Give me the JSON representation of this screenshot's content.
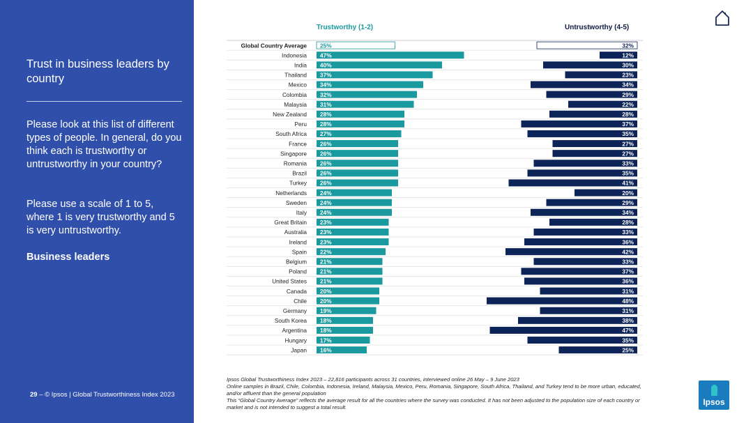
{
  "sidebar": {
    "title": "Trust in business leaders by country",
    "question": "Please look at this list of different types of people. In general, do you think each is trustworthy or untrustworthy in your country?",
    "instruction": "Please use a scale of 1 to 5, where 1 is very trustworthy and 5 is very untrustworthy.",
    "subject": "Business leaders",
    "footer_page": "29",
    "footer_text": " – © Ipsos | Global Trustworthiness Index 2023"
  },
  "header": {
    "left_label": "Trustworthy (1-2)",
    "right_label": "Untrustworthy (4-5)"
  },
  "notes": {
    "line1": "Ipsos Global Trustworthiness Index 2023 – 22,816 participants across 31 countries, interviewed online 26 May – 9 June 2023",
    "line2": "Online samples in Brazil, Chile, Colombia, Indonesia, Ireland, Malaysia, Mexico, Peru, Romania, Singapore, South Africa, Thailand, and Turkey tend to be more urban, educated, and/or affluent than the general population",
    "line3": "This “Global Country Average” reflects the average result for all the countries where the survey was conducted. It has not been adjusted to the population size of each country or market and is not intended to suggest a total result."
  },
  "logo": {
    "text": "Ipsos",
    "color": "#1b7bbf"
  },
  "icons": {
    "home": "home-icon"
  },
  "colors": {
    "trustworthy": "#1a9a9e",
    "untrustworthy": "#0d2458",
    "sidebar": "#2f4fab"
  },
  "chart_data": {
    "type": "bar",
    "categories": [
      "Global Country Average",
      "Indonesia",
      "India",
      "Thailand",
      "Mexico",
      "Colombia",
      "Malaysia",
      "New Zealand",
      "Peru",
      "South Africa",
      "France",
      "Singapore",
      "Romania",
      "Brazil",
      "Turkey",
      "Netherlands",
      "Sweden",
      "Italy",
      "Great Britain",
      "Australia",
      "Ireland",
      "Spain",
      "Belgium",
      "Poland",
      "United States",
      "Canada",
      "Chile",
      "Germany",
      "South Korea",
      "Argentina",
      "Hungary",
      "Japan"
    ],
    "series": [
      {
        "name": "Trustworthy (1-2)",
        "values": [
          25,
          47,
          40,
          37,
          34,
          32,
          31,
          28,
          28,
          27,
          26,
          26,
          26,
          26,
          26,
          24,
          24,
          24,
          23,
          23,
          23,
          22,
          21,
          21,
          21,
          20,
          20,
          19,
          18,
          18,
          17,
          16
        ]
      },
      {
        "name": "Untrustworthy (4-5)",
        "values": [
          32,
          12,
          30,
          23,
          34,
          29,
          22,
          28,
          37,
          35,
          27,
          27,
          33,
          35,
          41,
          20,
          29,
          34,
          28,
          33,
          36,
          42,
          33,
          37,
          36,
          31,
          48,
          31,
          38,
          47,
          35,
          25
        ]
      }
    ],
    "value_suffix": "%"
  }
}
